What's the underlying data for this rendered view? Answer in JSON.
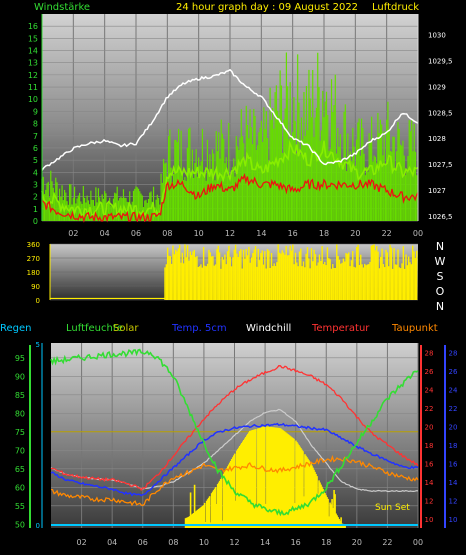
{
  "header": {
    "left_label": "Windstärke",
    "title": "24 hour graph day : 09 August 2022",
    "right_label": "Luftdruck"
  },
  "legend": [
    {
      "label": "Regen",
      "color": "#00c8ff"
    },
    {
      "label": "Luftfeuchte",
      "color": "#33dd33"
    },
    {
      "label": "Solar",
      "color": "#c8c800"
    },
    {
      "label": "Temp. 5cm",
      "color": "#2233ff"
    },
    {
      "label": "Windchill",
      "color": "#ffffff"
    },
    {
      "label": "Temperatur",
      "color": "#ff3333"
    },
    {
      "label": "Taupunkt",
      "color": "#ff8800"
    }
  ],
  "compass": [
    "N",
    "W",
    "S",
    "O",
    "N"
  ],
  "sunset_label": "Sun Set",
  "colors": {
    "wind": "#88ee00",
    "gust": "#66dd00",
    "wind_avg": "#ee1111",
    "pressure": "#ffffff",
    "direction": "#ffee00",
    "humidity": "#33dd33",
    "solar": "#ffee00",
    "temp5cm": "#2233ff",
    "windchill": "#cccccc",
    "temperature": "#ff3333",
    "dewpoint": "#ff8800",
    "rain": "#00c8ff"
  },
  "chart_data": [
    {
      "id": "wind-pressure",
      "type": "line",
      "x_ticks": [
        "02",
        "04",
        "06",
        "08",
        "10",
        "12",
        "14",
        "16",
        "18",
        "20",
        "22",
        "00"
      ],
      "y_left_ticks": [
        "0",
        "1",
        "2",
        "3",
        "4",
        "5",
        "6",
        "7",
        "8",
        "9",
        "10",
        "11",
        "12",
        "13",
        "14",
        "15",
        "16"
      ],
      "ylim_left": [
        0,
        17
      ],
      "y_right_ticks": [
        "1026,5",
        "1027",
        "1027,5",
        "1028",
        "1028,5",
        "1029",
        "1029,5",
        "1030"
      ],
      "ylim_right": [
        1026.4,
        1030.4
      ],
      "series": [
        {
          "key": "gust",
          "x": [
            0,
            2,
            4,
            6,
            7.5,
            8,
            10,
            12,
            13,
            14,
            15,
            16,
            17,
            18,
            19,
            20,
            21,
            22,
            23,
            24
          ],
          "values": [
            3.5,
            2,
            2,
            2,
            2,
            5.5,
            6,
            6,
            7,
            6,
            9,
            10,
            9,
            11,
            8,
            6,
            6,
            7,
            6,
            6
          ]
        },
        {
          "key": "wind",
          "x": [
            0,
            2,
            4,
            6,
            7.5,
            8,
            10,
            12,
            13,
            14,
            15,
            16,
            17,
            18,
            19,
            20,
            21,
            22,
            23,
            24
          ],
          "values": [
            2,
            1,
            1,
            1,
            1,
            4,
            4,
            4,
            5,
            4,
            5,
            6,
            5,
            6,
            5,
            4,
            4,
            5,
            4,
            4
          ]
        },
        {
          "key": "wind_avg",
          "x": [
            0,
            1,
            2,
            3,
            4,
            5,
            6,
            7,
            7.5,
            8,
            9,
            10,
            11,
            12,
            13,
            14,
            15,
            16,
            17,
            18,
            19,
            20,
            21,
            22,
            23,
            24
          ],
          "values": [
            1.5,
            0.8,
            0.5,
            0.3,
            0.3,
            0.3,
            0.3,
            0.3,
            0.5,
            3,
            3,
            2,
            3,
            2.5,
            3.5,
            3,
            3,
            2.5,
            3,
            3,
            3,
            3,
            3,
            2.5,
            2,
            2
          ]
        },
        {
          "key": "pressure",
          "x": [
            0,
            1,
            2,
            3,
            4,
            5,
            6,
            7,
            8,
            9,
            10,
            11,
            12,
            13,
            14,
            15,
            16,
            17,
            18,
            19,
            20,
            21,
            22,
            23,
            24
          ],
          "values": [
            1027.4,
            1027.6,
            1027.8,
            1027.9,
            1027.95,
            1027.85,
            1027.9,
            1028.3,
            1028.8,
            1029.05,
            1029.15,
            1029.2,
            1029.3,
            1029.0,
            1028.8,
            1028.4,
            1028.0,
            1027.85,
            1027.5,
            1027.55,
            1027.7,
            1027.95,
            1028.1,
            1028.5,
            1028.3
          ]
        }
      ]
    },
    {
      "id": "wind-direction",
      "type": "area",
      "y_ticks": [
        "0",
        "90",
        "180",
        "270",
        "360"
      ],
      "ylim": [
        0,
        360
      ],
      "start_hour": 7.5,
      "base_value": 10,
      "x_range": [
        0,
        24
      ]
    },
    {
      "id": "climate",
      "type": "line",
      "x_ticks": [
        "02",
        "04",
        "06",
        "08",
        "10",
        "12",
        "14",
        "16",
        "18",
        "20",
        "22",
        "00"
      ],
      "y_left_ticks": [
        "50",
        "55",
        "60",
        "65",
        "70",
        "75",
        "80",
        "85",
        "90",
        "95"
      ],
      "ylim_left": [
        49,
        99
      ],
      "y_right_red_ticks": [
        "10",
        "12",
        "14",
        "16",
        "18",
        "20",
        "22",
        "24",
        "26",
        "28"
      ],
      "y_right_blue_ticks": [
        "10",
        "12",
        "14",
        "16",
        "18",
        "20",
        "22",
        "24",
        "26",
        "28"
      ],
      "ylim_right": [
        9,
        29
      ],
      "series": [
        {
          "key": "humidity",
          "axis": "left",
          "x": [
            0,
            2,
            4,
            6,
            6.5,
            7,
            8,
            9,
            10,
            11,
            12,
            13,
            14,
            15,
            16,
            17,
            18,
            19,
            20,
            21,
            22,
            23,
            24
          ],
          "values": [
            94,
            95,
            96,
            96.5,
            96.5,
            95,
            90,
            81,
            72,
            64,
            59,
            56,
            54,
            53,
            54,
            56,
            60,
            66,
            72,
            78,
            84,
            88,
            92
          ]
        },
        {
          "key": "temperature",
          "axis": "right",
          "x": [
            0,
            1,
            2,
            3,
            4,
            5,
            6,
            7,
            8,
            9,
            10,
            11,
            12,
            13,
            14,
            15,
            16,
            17,
            18,
            19,
            20,
            21,
            22,
            23,
            24
          ],
          "values": [
            15.5,
            14.8,
            14.5,
            14.3,
            14.2,
            13.8,
            13.2,
            14.8,
            16.8,
            18.8,
            20.8,
            22.5,
            24,
            25,
            25.8,
            26.5,
            26,
            25.4,
            24.5,
            23,
            21,
            19.2,
            18,
            16.8,
            15.8
          ]
        },
        {
          "key": "temp5cm",
          "axis": "right",
          "x": [
            0,
            1,
            2,
            3,
            4,
            5,
            6,
            7,
            8,
            9,
            10,
            11,
            12,
            13,
            14,
            15,
            16,
            17,
            18,
            19,
            20,
            21,
            22,
            23,
            24
          ],
          "values": [
            15,
            14.2,
            13.8,
            13.5,
            13.2,
            12.7,
            12.5,
            14,
            15.5,
            17,
            18.5,
            19.4,
            19.8,
            20,
            20.1,
            20.2,
            20,
            19.8,
            19.6,
            18.7,
            17.8,
            17,
            16.3,
            15.6,
            15.5
          ]
        },
        {
          "key": "dewpoint",
          "axis": "right",
          "x": [
            0,
            1,
            2,
            3,
            4,
            5,
            6,
            7,
            8,
            9,
            10,
            11,
            12,
            13,
            14,
            15,
            16,
            17,
            18,
            19,
            20,
            21,
            22,
            23,
            24
          ],
          "values": [
            13,
            12.5,
            12.3,
            12.1,
            12.1,
            11.8,
            11.5,
            13.2,
            14.5,
            15,
            15.8,
            15.2,
            15.5,
            15.8,
            15.4,
            15.2,
            15.6,
            16,
            16.4,
            16.5,
            16.2,
            15.6,
            15,
            14.5,
            14.2
          ]
        },
        {
          "key": "windchill",
          "axis": "right",
          "x": [
            0,
            1,
            2,
            3,
            4,
            5,
            6,
            7,
            8,
            9,
            10,
            11,
            12,
            13,
            14,
            15,
            16,
            17,
            18,
            19,
            20,
            21,
            22,
            23,
            24
          ],
          "values": [
            15.5,
            14.8,
            14.5,
            14.3,
            14.2,
            13.8,
            13.2,
            13.5,
            14,
            15,
            16,
            17.5,
            19,
            20.5,
            21.5,
            21.8,
            20.5,
            18,
            16,
            14,
            13.2,
            13,
            13,
            13,
            13
          ]
        },
        {
          "key": "solar",
          "axis": "right",
          "x": [
            6.8,
            8,
            9,
            10,
            11,
            12,
            13,
            14,
            15,
            16,
            17,
            18,
            19,
            20
          ],
          "values": [
            9,
            9.5,
            10.2,
            11.5,
            14,
            17,
            19.5,
            20,
            19.8,
            18.5,
            16,
            12.5,
            9.5,
            9
          ]
        },
        {
          "key": "rain",
          "axis": "left",
          "x": [
            0,
            24
          ],
          "values": [
            49.8,
            49.8
          ]
        }
      ]
    }
  ]
}
